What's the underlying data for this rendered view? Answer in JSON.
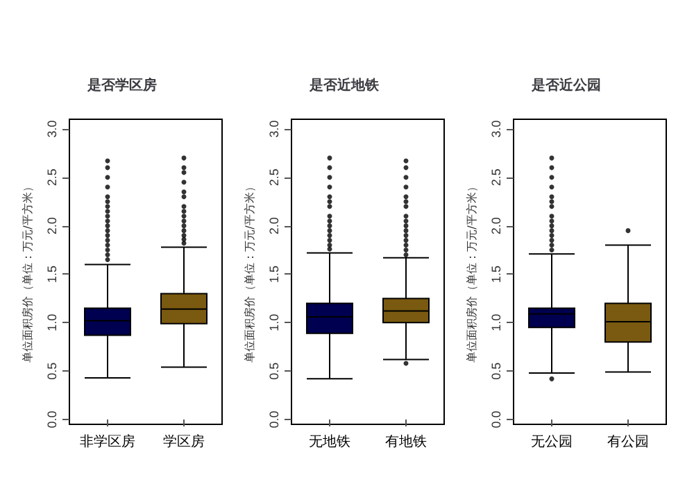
{
  "chart_data": [
    {
      "type": "box",
      "title": "是否学区房",
      "ylabel": "单位面积房价（单位：万元/平方米）",
      "categories": [
        "非学区房",
        "学区房"
      ],
      "colors": [
        "#000050",
        "#7a5a10"
      ],
      "ylim": [
        -0.05,
        3.1
      ],
      "yticks": [
        {
          "value": 0,
          "label": "0.0"
        },
        0.5,
        {
          "value": 1,
          "label": "1.0"
        },
        1.5,
        {
          "value": 2,
          "label": "2.0"
        },
        2.5,
        {
          "value": 3,
          "label": "3.0"
        }
      ],
      "grid": false,
      "boxes": [
        {
          "low": 0.43,
          "q1": 0.87,
          "median": 1.02,
          "q3": 1.15,
          "high": 1.6,
          "outliers": [
            1.65,
            1.7,
            1.75,
            1.8,
            1.85,
            1.9,
            1.95,
            2.0,
            2.05,
            2.1,
            2.15,
            2.2,
            2.25,
            2.3,
            2.4,
            2.5,
            2.6,
            2.67
          ]
        },
        {
          "low": 0.54,
          "q1": 0.99,
          "median": 1.14,
          "q3": 1.3,
          "high": 1.78,
          "outliers": [
            1.82,
            1.86,
            1.9,
            1.95,
            2.0,
            2.05,
            2.1,
            2.15,
            2.2,
            2.3,
            2.35,
            2.45,
            2.55,
            2.6,
            2.7
          ]
        }
      ]
    },
    {
      "type": "box",
      "title": "是否近地铁",
      "ylabel": "单位面积房价（单位：万元/平方米）",
      "categories": [
        "无地铁",
        "有地铁"
      ],
      "colors": [
        "#000050",
        "#7a5a10"
      ],
      "ylim": [
        -0.05,
        3.1
      ],
      "yticks": [
        {
          "value": 0,
          "label": "0.0"
        },
        0.5,
        {
          "value": 1,
          "label": "1.0"
        },
        1.5,
        {
          "value": 2,
          "label": "2.0"
        },
        2.5,
        {
          "value": 3,
          "label": "3.0"
        }
      ],
      "grid": false,
      "boxes": [
        {
          "low": 0.42,
          "q1": 0.89,
          "median": 1.06,
          "q3": 1.2,
          "high": 1.72,
          "outliers": [
            1.76,
            1.8,
            1.85,
            1.9,
            1.95,
            2.0,
            2.05,
            2.1,
            2.2,
            2.25,
            2.3,
            2.4,
            2.5,
            2.6,
            2.7
          ]
        },
        {
          "low": 0.62,
          "q1": 1.0,
          "median": 1.12,
          "q3": 1.25,
          "high": 1.67,
          "outliers": [
            0.58,
            1.7,
            1.75,
            1.8,
            1.85,
            1.9,
            1.95,
            2.0,
            2.05,
            2.1,
            2.2,
            2.25,
            2.3,
            2.4,
            2.5,
            2.6,
            2.67
          ]
        }
      ]
    },
    {
      "type": "box",
      "title": "是否近公园",
      "ylabel": "单位面积房价（单位：万元/平方米）",
      "categories": [
        "无公园",
        "有公园"
      ],
      "colors": [
        "#000050",
        "#7a5a10"
      ],
      "ylim": [
        -0.05,
        3.1
      ],
      "yticks": [
        {
          "value": 0,
          "label": "0.0"
        },
        0.5,
        {
          "value": 1,
          "label": "1.0"
        },
        1.5,
        {
          "value": 2,
          "label": "2.0"
        },
        2.5,
        {
          "value": 3,
          "label": "3.0"
        }
      ],
      "grid": false,
      "boxes": [
        {
          "low": 0.48,
          "q1": 0.95,
          "median": 1.09,
          "q3": 1.15,
          "high": 1.71,
          "outliers": [
            0.42,
            1.75,
            1.8,
            1.85,
            1.9,
            1.95,
            2.0,
            2.05,
            2.1,
            2.2,
            2.25,
            2.3,
            2.4,
            2.5,
            2.6,
            2.7
          ]
        },
        {
          "low": 0.49,
          "q1": 0.8,
          "median": 1.01,
          "q3": 1.2,
          "high": 1.8,
          "outliers": [
            1.95
          ]
        }
      ]
    }
  ]
}
